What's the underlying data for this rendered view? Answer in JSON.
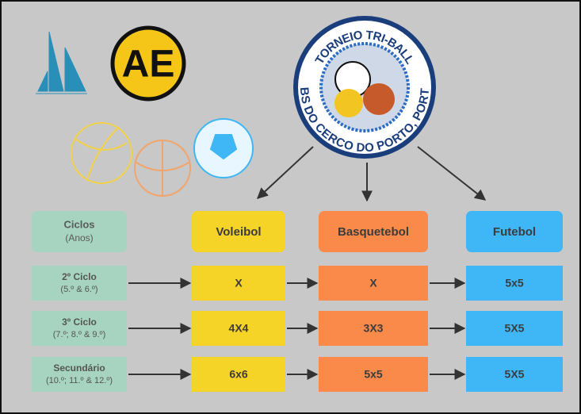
{
  "logo": {
    "initials": "AE",
    "top_text": "TORNEIO TRI-BALL",
    "bottom_text": "EBS DO CERCO DO PORTO, PORTO"
  },
  "table": {
    "header": {
      "ciclos": "Ciclos",
      "anos": "(Anos)",
      "columns": [
        "Voleibol",
        "Basquetebol",
        "Futebol"
      ]
    },
    "rows": [
      {
        "ciclo": "2º Ciclo",
        "anos": "(5.º & 6.º)",
        "cells": [
          "X",
          "X",
          "5x5"
        ]
      },
      {
        "ciclo": "3º Ciclo",
        "anos": "(7.º; 8.º & 9.º)",
        "cells": [
          "4X4",
          "3X3",
          "5X5"
        ]
      },
      {
        "ciclo": "Secundário",
        "anos": "(10.º; 11.º & 12.º)",
        "cells": [
          "6x6",
          "5x5",
          "5X5"
        ]
      }
    ]
  }
}
